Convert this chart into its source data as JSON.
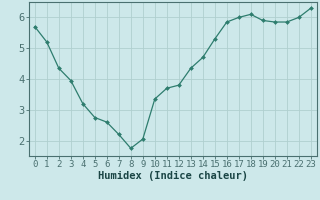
{
  "x": [
    0,
    1,
    2,
    3,
    4,
    5,
    6,
    7,
    8,
    9,
    10,
    11,
    12,
    13,
    14,
    15,
    16,
    17,
    18,
    19,
    20,
    21,
    22,
    23
  ],
  "y": [
    5.7,
    5.2,
    4.35,
    3.95,
    3.2,
    2.75,
    2.6,
    2.2,
    1.75,
    2.05,
    3.35,
    3.7,
    3.8,
    4.35,
    4.7,
    5.3,
    5.85,
    6.0,
    6.1,
    5.9,
    5.85,
    5.85,
    6.0,
    6.3
  ],
  "xlabel": "Humidex (Indice chaleur)",
  "xlim": [
    -0.5,
    23.5
  ],
  "ylim": [
    1.5,
    6.5
  ],
  "yticks": [
    2,
    3,
    4,
    5,
    6
  ],
  "xticks": [
    0,
    1,
    2,
    3,
    4,
    5,
    6,
    7,
    8,
    9,
    10,
    11,
    12,
    13,
    14,
    15,
    16,
    17,
    18,
    19,
    20,
    21,
    22,
    23
  ],
  "line_color": "#2e7d6e",
  "marker_color": "#2e7d6e",
  "bg_color": "#cde8ea",
  "grid_color": "#b0cfcf",
  "axis_color": "#4a7070",
  "text_color": "#1a4545",
  "font_size": 6.5
}
